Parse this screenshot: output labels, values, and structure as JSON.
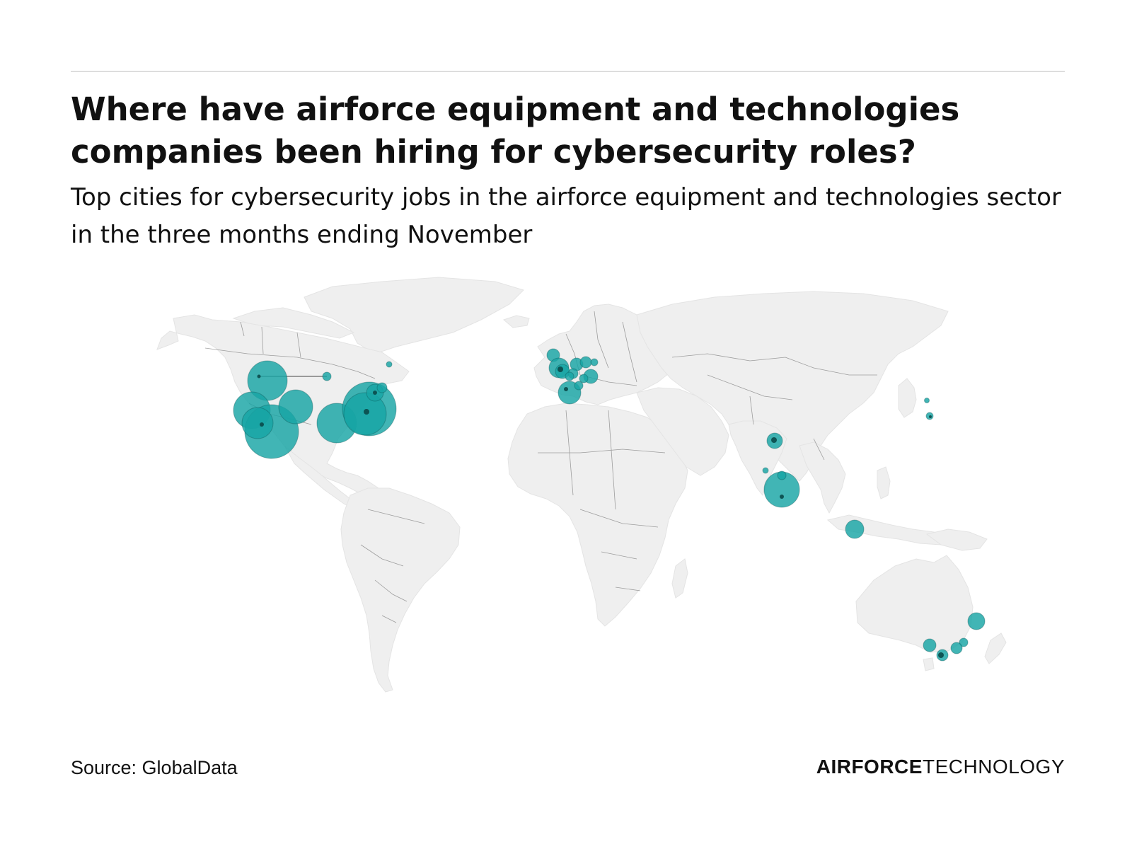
{
  "header": {
    "title": "Where have airforce equipment and technologies companies been hiring for cybersecurity roles?",
    "subtitle": "Top cities for cybersecurity jobs in the airforce equipment and technologies sector in the three months ending November"
  },
  "footer": {
    "source": "Source: GlobalData",
    "brand_bold": "AIRFORCE",
    "brand_regular": "TECHNOLOGY"
  },
  "colors": {
    "bubble": "#17a5a5",
    "bubble_dark": "#0a4a4a",
    "land": "#efefef",
    "border": "#5a5a5a",
    "leader_line": "#444444"
  },
  "map_data": {
    "type": "bubble-map",
    "projection": "world",
    "bubble_size_meaning": "relative number of cybersecurity job postings (no values shown)",
    "clusters": [
      {
        "region": "US west coast (Seattle area)",
        "relative_size": 0.55
      },
      {
        "region": "US west coast (San Francisco area)",
        "relative_size": 0.5
      },
      {
        "region": "US west coast (Los Angeles area)",
        "relative_size": 0.7
      },
      {
        "region": "US southwest (Arizona)",
        "relative_size": 0.5
      },
      {
        "region": "US mountain (Colorado)",
        "relative_size": 0.45
      },
      {
        "region": "US south (Texas)",
        "relative_size": 0.55
      },
      {
        "region": "US east coast (Washington DC / Virginia)",
        "relative_size": 0.75
      },
      {
        "region": "US northeast",
        "relative_size": 0.25
      },
      {
        "region": "Canada (Ottawa)",
        "relative_size": 0.1
      },
      {
        "region": "Canada (Montreal)",
        "relative_size": 0.08
      },
      {
        "region": "United Kingdom",
        "relative_size": 0.3
      },
      {
        "region": "Western Europe (France, Germany, Netherlands)",
        "relative_size": 0.25
      },
      {
        "region": "Spain",
        "relative_size": 0.3
      },
      {
        "region": "Italy",
        "relative_size": 0.2
      },
      {
        "region": "India (Delhi)",
        "relative_size": 0.2
      },
      {
        "region": "India (Bangalore / Hyderabad)",
        "relative_size": 0.45
      },
      {
        "region": "Singapore",
        "relative_size": 0.25
      },
      {
        "region": "Japan (Tokyo)",
        "relative_size": 0.1
      },
      {
        "region": "Australia (Brisbane)",
        "relative_size": 0.2
      },
      {
        "region": "Australia (Sydney / Canberra)",
        "relative_size": 0.2
      },
      {
        "region": "Australia (Melbourne)",
        "relative_size": 0.15
      },
      {
        "region": "Australia (Adelaide)",
        "relative_size": 0.15
      }
    ]
  }
}
